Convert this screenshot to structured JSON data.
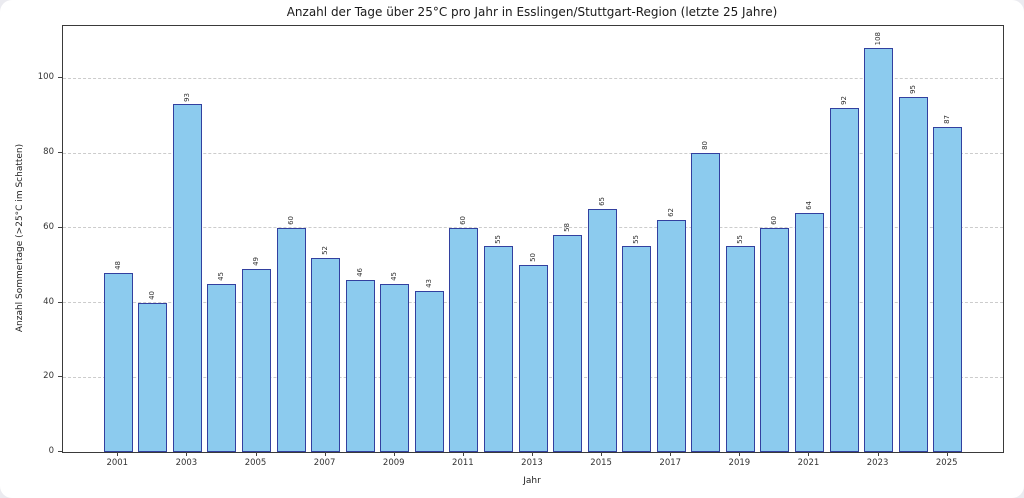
{
  "window": {
    "background": "#ebebf0",
    "card_background": "#ffffff"
  },
  "chart_data": {
    "type": "bar",
    "title": "Anzahl der Tage über 25°C pro Jahr in Esslingen/Stuttgart-Region (letzte 25 Jahre)",
    "xlabel": "Jahr",
    "ylabel": "Anzahl Sommertage (>25°C im Schatten)",
    "categories": [
      2001,
      2002,
      2003,
      2004,
      2005,
      2006,
      2007,
      2008,
      2009,
      2010,
      2011,
      2012,
      2013,
      2014,
      2015,
      2016,
      2017,
      2018,
      2019,
      2020,
      2021,
      2022,
      2023,
      2024,
      2025
    ],
    "values": [
      48,
      40,
      93,
      45,
      49,
      60,
      52,
      46,
      45,
      43,
      60,
      55,
      50,
      58,
      65,
      55,
      62,
      80,
      55,
      60,
      64,
      92,
      108,
      95,
      87
    ],
    "ylim": [
      0,
      114
    ],
    "yticks": [
      0,
      20,
      40,
      60,
      80,
      100
    ],
    "xtick_labels": [
      2001,
      2003,
      2005,
      2007,
      2009,
      2011,
      2013,
      2015,
      2017,
      2019,
      2021,
      2023,
      2025
    ],
    "grid": {
      "axis": "y",
      "style": "dashed",
      "color": "#cccccc"
    },
    "value_labels": true,
    "value_label_rotation": 90,
    "legend": "none",
    "colors": {
      "bar_fill": "#8CCBEE",
      "bar_edge": "#32409F",
      "spine": "#3a3a3a",
      "tick_text": "#333333",
      "gridline": "#cccccc"
    }
  }
}
